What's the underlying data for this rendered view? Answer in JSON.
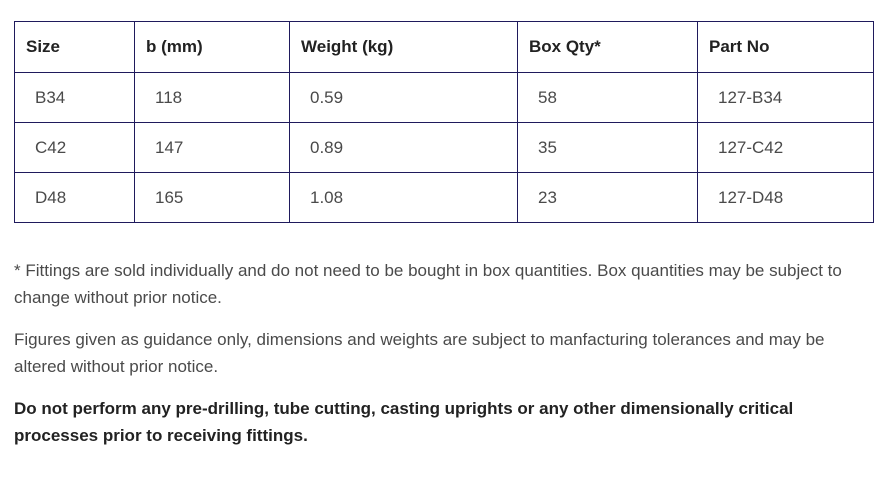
{
  "table": {
    "headers": [
      "Size",
      "b (mm)",
      "Weight (kg)",
      "Box Qty*",
      "Part No"
    ],
    "rows": [
      [
        "B34",
        "118",
        "0.59",
        "58",
        "127-B34"
      ],
      [
        "C42",
        "147",
        "0.89",
        "35",
        "127-C42"
      ],
      [
        "D48",
        "165",
        "1.08",
        "23",
        "127-D48"
      ]
    ],
    "border_color": "#1f1a5c"
  },
  "notes": {
    "box_qty": "* Fittings are sold individually and do not need to be bought in box quantities. Box quantities may be subject to change without prior notice.",
    "guidance": "Figures given as guidance only, dimensions and weights are subject to manfacturing tolerances and may be altered without prior notice.",
    "warning": "Do not perform any pre-drilling, tube cutting, casting uprights or any other dimensionally critical processes prior to receiving fittings."
  }
}
